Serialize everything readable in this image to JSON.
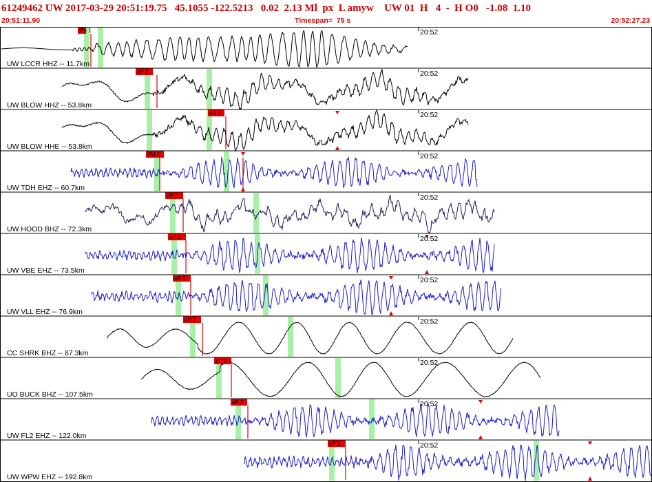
{
  "header": {
    "title": "61249462 UW 2017-03-29 20:51:19.75   45.1055 -122.5213   0.02  2.13 Ml  px  L amyw    UW 01  H   4  -  H O0   -1.08  1.10",
    "start_time": "20:51:11.90",
    "timespan": "Timespan=  75 s",
    "end_time": "20:52:27.23"
  },
  "colors": {
    "header_text": "#cc0000",
    "pick_fill": "#e60000",
    "pick_line": "#dd0000",
    "window_fill": "#a8f0a8",
    "trace_black": "#000000",
    "trace_blue": "#1a1acc",
    "trace_navy": "#1c1c5e"
  },
  "traces": [
    {
      "label": "UW LCCR HHZ -- 11.7km",
      "tick": "20:52",
      "pick": "iPc 1",
      "color": "black"
    },
    {
      "label": "UW BLOW HHZ -- 53.8km",
      "tick": "20:52",
      "pick": "eP 2",
      "color": "black"
    },
    {
      "label": "UW BLOW HHE -- 53.8km",
      "tick": "20:52",
      "pick": "eS 1",
      "color": "black"
    },
    {
      "label": "UW TDH EHZ -- 60.7km",
      "tick": "20:52",
      "pick": "iPd 1",
      "color": "blue"
    },
    {
      "label": "UW HOOD BHZ -- 72.3km",
      "tick": "20:52",
      "pick": "eP 2",
      "color": "navy"
    },
    {
      "label": "UW VBE EHZ -- 73.5km",
      "tick": "20:52",
      "pick": "eP 1",
      "color": "blue"
    },
    {
      "label": "UW VLL EHZ -- 76.9km",
      "tick": "20:52",
      "pick": "eP 2",
      "color": "blue"
    },
    {
      "label": "CC SHRK BHZ -- 87.3km",
      "tick": "20:52",
      "pick": "eP 2",
      "color": "black"
    },
    {
      "label": "UO BUCK BHZ -- 107.5km",
      "tick": "20:52",
      "pick": "eP 2",
      "color": "black"
    },
    {
      "label": "UW FL2 EHZ -- 122.0km",
      "tick": "20:52",
      "pick": "eP 2",
      "color": "blue"
    },
    {
      "label": "UW WPW EHZ -- 192.8km",
      "tick": "20:52",
      "pick": "eP 2",
      "color": "blue"
    }
  ]
}
